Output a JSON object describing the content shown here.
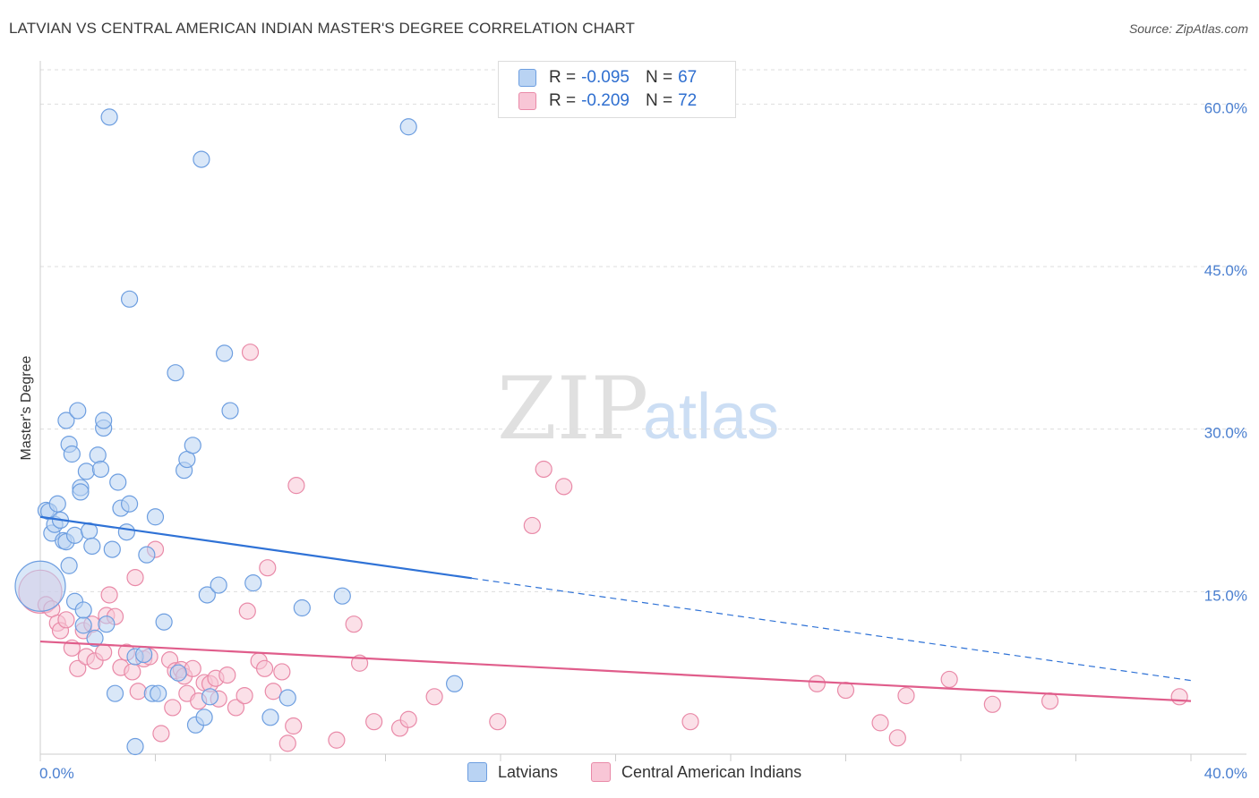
{
  "title": "LATVIAN VS CENTRAL AMERICAN INDIAN MASTER'S DEGREE CORRELATION CHART",
  "source": "Source: ZipAtlas.com",
  "watermark": {
    "zip": "ZIP",
    "atlas": "atlas"
  },
  "legend": {
    "rows": [
      {
        "r_label": "R =",
        "r_value": "-0.095",
        "n_label": "N =",
        "n_value": "67"
      },
      {
        "r_label": "R =",
        "r_value": "-0.209",
        "n_label": "N =",
        "n_value": "72"
      }
    ]
  },
  "bottom_legend": {
    "latvians": "Latvians",
    "central_american_indians": "Central American Indians"
  },
  "colors": {
    "latvian_fill": "#b9d3f3",
    "latvian_stroke": "#6d9ee0",
    "latvian_line": "#2f72d6",
    "cai_fill": "#f8c6d6",
    "cai_stroke": "#e98aa8",
    "cai_line": "#e05d8b",
    "grid": "#dddddd",
    "tick": "#4a7fd0"
  },
  "chart_data": {
    "type": "scatter",
    "title": "LATVIAN VS CENTRAL AMERICAN INDIAN MASTER'S DEGREE CORRELATION CHART",
    "xlabel": "",
    "ylabel": "Master's Degree",
    "xlim": [
      0,
      40
    ],
    "ylim": [
      0,
      63
    ],
    "x_tick_labels": {
      "left": "0.0%",
      "right": "40.0%"
    },
    "y_ticks": [
      {
        "value": 15,
        "label": "15.0%"
      },
      {
        "value": 30,
        "label": "30.0%"
      },
      {
        "value": 45,
        "label": "45.0%"
      },
      {
        "value": 60,
        "label": "60.0%"
      }
    ],
    "series": [
      {
        "name": "Latvians",
        "r": -0.095,
        "n": 67,
        "trend": {
          "x0": 0,
          "y0": 21.9,
          "x_solid_end": 15,
          "x1": 40,
          "y1": 6.8
        },
        "points": [
          [
            0.0,
            15.5,
            28
          ],
          [
            0.2,
            22.5,
            9
          ],
          [
            0.3,
            22.4,
            9
          ],
          [
            0.4,
            20.4,
            9
          ],
          [
            0.5,
            21.2,
            9
          ],
          [
            0.6,
            23.1,
            9
          ],
          [
            0.7,
            21.6,
            9
          ],
          [
            0.8,
            19.7,
            9
          ],
          [
            0.9,
            30.8,
            9
          ],
          [
            0.9,
            19.6,
            9
          ],
          [
            1.0,
            17.4,
            9
          ],
          [
            1.0,
            28.6,
            9
          ],
          [
            1.1,
            27.7,
            9
          ],
          [
            1.2,
            20.2,
            9
          ],
          [
            1.2,
            14.1,
            9
          ],
          [
            1.3,
            31.7,
            9
          ],
          [
            1.4,
            24.6,
            9
          ],
          [
            1.4,
            24.2,
            9
          ],
          [
            1.5,
            11.9,
            9
          ],
          [
            1.5,
            13.3,
            9
          ],
          [
            1.6,
            26.1,
            9
          ],
          [
            1.7,
            20.6,
            9
          ],
          [
            1.8,
            19.2,
            9
          ],
          [
            1.9,
            10.7,
            9
          ],
          [
            2.0,
            27.6,
            9
          ],
          [
            2.1,
            26.3,
            9
          ],
          [
            2.2,
            30.1,
            9
          ],
          [
            2.2,
            30.8,
            9
          ],
          [
            2.3,
            12.0,
            9
          ],
          [
            2.4,
            58.8,
            9
          ],
          [
            2.5,
            18.9,
            9
          ],
          [
            2.6,
            5.6,
            9
          ],
          [
            2.7,
            25.1,
            9
          ],
          [
            2.8,
            22.7,
            9
          ],
          [
            3.0,
            20.5,
            9
          ],
          [
            3.1,
            23.1,
            9
          ],
          [
            3.1,
            42.0,
            9
          ],
          [
            3.3,
            0.7,
            9
          ],
          [
            3.3,
            9.0,
            9
          ],
          [
            3.6,
            9.2,
            9
          ],
          [
            3.7,
            18.4,
            9
          ],
          [
            3.9,
            5.6,
            9
          ],
          [
            4.0,
            21.9,
            9
          ],
          [
            4.1,
            5.6,
            9
          ],
          [
            4.3,
            12.2,
            9
          ],
          [
            4.7,
            35.2,
            9
          ],
          [
            4.8,
            7.5,
            9
          ],
          [
            5.0,
            26.2,
            9
          ],
          [
            5.1,
            27.2,
            9
          ],
          [
            5.3,
            28.5,
            9
          ],
          [
            5.4,
            2.7,
            9
          ],
          [
            5.6,
            54.9,
            9
          ],
          [
            5.7,
            3.4,
            9
          ],
          [
            5.8,
            14.7,
            9
          ],
          [
            5.9,
            5.3,
            9
          ],
          [
            6.2,
            15.6,
            9
          ],
          [
            6.4,
            37.0,
            9
          ],
          [
            6.6,
            31.7,
            9
          ],
          [
            7.4,
            15.8,
            9
          ],
          [
            8.0,
            3.4,
            9
          ],
          [
            8.6,
            5.2,
            9
          ],
          [
            9.1,
            13.5,
            9
          ],
          [
            10.5,
            14.6,
            9
          ],
          [
            12.8,
            57.9,
            9
          ],
          [
            14.4,
            6.5,
            9
          ]
        ]
      },
      {
        "name": "Central American Indians",
        "r": -0.209,
        "n": 72,
        "trend": {
          "x0": 0,
          "y0": 10.4,
          "x1": 40,
          "y1": 4.9
        },
        "points": [
          [
            0.0,
            15.0,
            24
          ],
          [
            0.2,
            13.8,
            9
          ],
          [
            0.4,
            13.4,
            9
          ],
          [
            0.6,
            12.1,
            9
          ],
          [
            0.7,
            11.4,
            9
          ],
          [
            0.9,
            12.4,
            9
          ],
          [
            1.1,
            9.8,
            9
          ],
          [
            1.3,
            7.9,
            9
          ],
          [
            1.5,
            11.4,
            9
          ],
          [
            1.6,
            9.0,
            9
          ],
          [
            1.8,
            12.0,
            9
          ],
          [
            1.9,
            8.6,
            9
          ],
          [
            2.2,
            9.4,
            9
          ],
          [
            2.3,
            12.8,
            9
          ],
          [
            2.4,
            14.7,
            9
          ],
          [
            2.6,
            12.7,
            9
          ],
          [
            2.8,
            8.0,
            9
          ],
          [
            3.0,
            9.4,
            9
          ],
          [
            3.2,
            7.6,
            9
          ],
          [
            3.3,
            16.3,
            9
          ],
          [
            3.4,
            5.8,
            9
          ],
          [
            3.6,
            8.8,
            9
          ],
          [
            3.8,
            9.0,
            9
          ],
          [
            4.0,
            18.9,
            9
          ],
          [
            4.2,
            1.9,
            9
          ],
          [
            4.5,
            8.7,
            9
          ],
          [
            4.6,
            4.3,
            9
          ],
          [
            4.7,
            7.7,
            9
          ],
          [
            4.9,
            7.8,
            9
          ],
          [
            5.0,
            7.2,
            9
          ],
          [
            5.1,
            5.6,
            9
          ],
          [
            5.3,
            7.9,
            9
          ],
          [
            5.5,
            4.9,
            9
          ],
          [
            5.7,
            6.6,
            9
          ],
          [
            5.9,
            6.5,
            9
          ],
          [
            6.1,
            7.0,
            9
          ],
          [
            6.2,
            5.1,
            9
          ],
          [
            6.5,
            7.3,
            9
          ],
          [
            6.8,
            4.3,
            9
          ],
          [
            7.1,
            5.4,
            9
          ],
          [
            7.2,
            13.2,
            9
          ],
          [
            7.3,
            37.1,
            9
          ],
          [
            7.6,
            8.6,
            9
          ],
          [
            7.8,
            7.9,
            9
          ],
          [
            7.9,
            17.2,
            9
          ],
          [
            8.1,
            5.8,
            9
          ],
          [
            8.4,
            7.6,
            9
          ],
          [
            8.6,
            1.0,
            9
          ],
          [
            8.8,
            2.6,
            9
          ],
          [
            8.9,
            24.8,
            9
          ],
          [
            10.3,
            1.3,
            9
          ],
          [
            10.9,
            12.0,
            9
          ],
          [
            11.1,
            8.4,
            9
          ],
          [
            11.6,
            3.0,
            9
          ],
          [
            12.5,
            2.4,
            9
          ],
          [
            12.8,
            3.2,
            9
          ],
          [
            13.7,
            5.3,
            9
          ],
          [
            15.9,
            3.0,
            9
          ],
          [
            17.1,
            21.1,
            9
          ],
          [
            17.5,
            26.3,
            9
          ],
          [
            18.2,
            24.7,
            9
          ],
          [
            22.6,
            3.0,
            9
          ],
          [
            27.0,
            6.5,
            9
          ],
          [
            28.0,
            5.9,
            9
          ],
          [
            29.2,
            2.9,
            9
          ],
          [
            29.8,
            1.5,
            9
          ],
          [
            30.1,
            5.4,
            9
          ],
          [
            31.6,
            6.9,
            9
          ],
          [
            33.1,
            4.6,
            9
          ],
          [
            35.1,
            4.9,
            9
          ],
          [
            39.6,
            5.3,
            9
          ]
        ]
      }
    ]
  }
}
